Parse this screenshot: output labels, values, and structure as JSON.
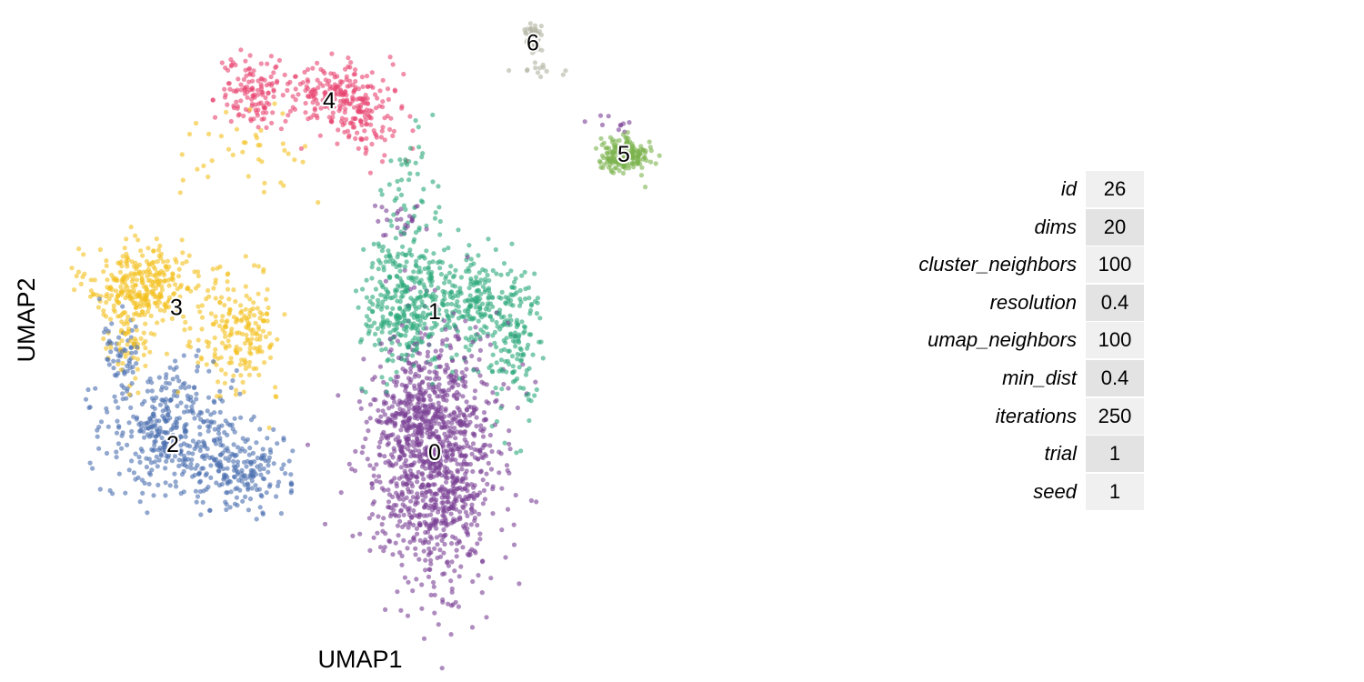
{
  "chart_data": {
    "type": "scatter",
    "title": "",
    "xlabel": "UMAP1",
    "ylabel": "UMAP2",
    "axes_visible": false,
    "grid": false,
    "legend": "none",
    "point_alpha": 0.6,
    "xlim": [
      -10.5,
      6.0
    ],
    "ylim": [
      -6.5,
      8.0
    ],
    "clusters": [
      {
        "label": "0",
        "color": "#7a3f95",
        "centroid": [
          -0.3,
          -2.5
        ],
        "blobs": [
          {
            "center": [
              -0.3,
              -2.6
            ],
            "sd": [
              0.85,
              1.5
            ],
            "n": 1150
          },
          {
            "center": [
              -0.9,
              -1.5
            ],
            "sd": [
              0.45,
              0.7
            ],
            "n": 120
          },
          {
            "center": [
              -1.3,
              3.1
            ],
            "sd": [
              0.35,
              0.25
            ],
            "n": 25
          },
          {
            "center": [
              4.6,
              5.4
            ],
            "sd": [
              0.3,
              0.12
            ],
            "n": 10
          }
        ]
      },
      {
        "label": "1",
        "color": "#29a87a",
        "centroid": [
          -0.3,
          0.9
        ],
        "blobs": [
          {
            "center": [
              -1.2,
              1.0
            ],
            "sd": [
              0.55,
              0.8
            ],
            "n": 300
          },
          {
            "center": [
              0.6,
              1.1
            ],
            "sd": [
              0.6,
              0.6
            ],
            "n": 220
          },
          {
            "center": [
              1.9,
              0.2
            ],
            "sd": [
              0.35,
              0.9
            ],
            "n": 140
          },
          {
            "center": [
              -0.9,
              3.6
            ],
            "sd": [
              0.5,
              0.9
            ],
            "n": 60
          }
        ]
      },
      {
        "label": "2",
        "color": "#4a6eaf",
        "centroid": [
          -7.5,
          -2.3
        ],
        "blobs": [
          {
            "center": [
              -7.6,
              -1.9
            ],
            "sd": [
              0.9,
              0.75
            ],
            "n": 360
          },
          {
            "center": [
              -5.7,
              -2.9
            ],
            "sd": [
              0.75,
              0.45
            ],
            "n": 200
          },
          {
            "center": [
              -8.8,
              -0.2
            ],
            "sd": [
              0.3,
              0.6
            ],
            "n": 60
          }
        ]
      },
      {
        "label": "3",
        "color": "#f4bf1c",
        "centroid": [
          -7.4,
          1.0
        ],
        "blobs": [
          {
            "center": [
              -8.3,
              1.5
            ],
            "sd": [
              0.7,
              0.5
            ],
            "n": 300
          },
          {
            "center": [
              -5.8,
              0.4
            ],
            "sd": [
              0.6,
              0.7
            ],
            "n": 200
          },
          {
            "center": [
              -8.7,
              0.1
            ],
            "sd": [
              0.3,
              0.5
            ],
            "n": 60
          },
          {
            "center": [
              -5.5,
              4.8
            ],
            "sd": [
              0.9,
              0.6
            ],
            "n": 40
          }
        ]
      },
      {
        "label": "4",
        "color": "#e8426f",
        "centroid": [
          -3.2,
          6.0
        ],
        "blobs": [
          {
            "center": [
              -3.0,
              6.1
            ],
            "sd": [
              0.8,
              0.4
            ],
            "n": 220
          },
          {
            "center": [
              -5.3,
              6.2
            ],
            "sd": [
              0.4,
              0.45
            ],
            "n": 120
          },
          {
            "center": [
              -2.1,
              5.4
            ],
            "sd": [
              0.5,
              0.4
            ],
            "n": 60
          }
        ]
      },
      {
        "label": "5",
        "color": "#7cb34c",
        "centroid": [
          4.9,
          4.7
        ],
        "blobs": [
          {
            "center": [
              4.9,
              4.7
            ],
            "sd": [
              0.35,
              0.22
            ],
            "n": 200
          }
        ]
      },
      {
        "label": "6",
        "color": "#b0b3a0",
        "centroid": [
          2.4,
          7.4
        ],
        "blobs": [
          {
            "center": [
              2.4,
              7.5
            ],
            "sd": [
              0.12,
              0.18
            ],
            "n": 60
          },
          {
            "center": [
              2.5,
              6.9
            ],
            "sd": [
              0.35,
              0.25
            ],
            "n": 14
          }
        ]
      }
    ]
  },
  "params_table": [
    {
      "name": "id",
      "value": "26"
    },
    {
      "name": "dims",
      "value": "20"
    },
    {
      "name": "cluster_neighbors",
      "value": "100"
    },
    {
      "name": "resolution",
      "value": "0.4"
    },
    {
      "name": "umap_neighbors",
      "value": "100"
    },
    {
      "name": "min_dist",
      "value": "0.4"
    },
    {
      "name": "iterations",
      "value": "250"
    },
    {
      "name": "trial",
      "value": "1"
    },
    {
      "name": "seed",
      "value": "1"
    }
  ]
}
